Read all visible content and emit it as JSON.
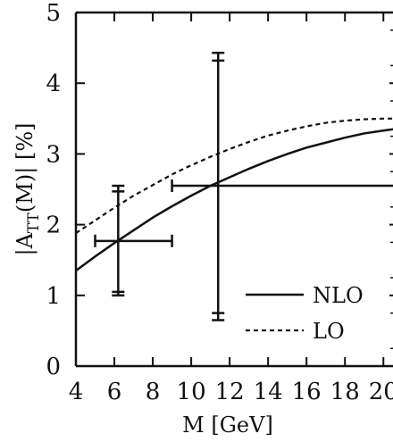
{
  "chart_data": {
    "type": "line",
    "xlabel": "M [GeV]",
    "ylabel_parts": {
      "pre": "|A",
      "sub": "TT",
      "post": "(M)| [%]"
    },
    "xlim": [
      4,
      20.5
    ],
    "ylim": [
      0,
      5
    ],
    "x_ticks": [
      4,
      6,
      8,
      10,
      12,
      14,
      16,
      18,
      20
    ],
    "y_ticks": [
      0,
      1,
      2,
      3,
      4,
      5
    ],
    "grid": false,
    "legend_placement": "bottom-right",
    "series": [
      {
        "name": "NLO",
        "style": "solid",
        "x": [
          4,
          5,
          6,
          7,
          8,
          9,
          10,
          11,
          12,
          13,
          14,
          15,
          16,
          17,
          18,
          19,
          20,
          20.5
        ],
        "y": [
          1.35,
          1.55,
          1.74,
          1.92,
          2.1,
          2.26,
          2.41,
          2.55,
          2.67,
          2.79,
          2.9,
          3.0,
          3.09,
          3.16,
          3.23,
          3.29,
          3.33,
          3.35
        ]
      },
      {
        "name": "LO",
        "style": "dashed",
        "x": [
          4,
          5,
          6,
          7,
          8,
          9,
          10,
          11,
          12,
          13,
          14,
          15,
          16,
          17,
          18,
          19,
          20,
          20.5
        ],
        "y": [
          1.88,
          2.06,
          2.24,
          2.41,
          2.56,
          2.71,
          2.84,
          2.96,
          3.07,
          3.17,
          3.26,
          3.33,
          3.39,
          3.44,
          3.47,
          3.49,
          3.5,
          3.5
        ]
      }
    ],
    "error_points": [
      {
        "x": 6.2,
        "y": 1.77,
        "xerr": [
          5.0,
          9.0
        ],
        "yerr_outer": [
          1.0,
          2.55
        ],
        "yerr_inner": [
          1.05,
          2.47
        ]
      },
      {
        "x": 11.4,
        "y": 2.55,
        "xerr": [
          9.0,
          20.5
        ],
        "yerr_outer": [
          0.65,
          4.43
        ],
        "yerr_inner": [
          0.75,
          4.32
        ]
      }
    ]
  }
}
